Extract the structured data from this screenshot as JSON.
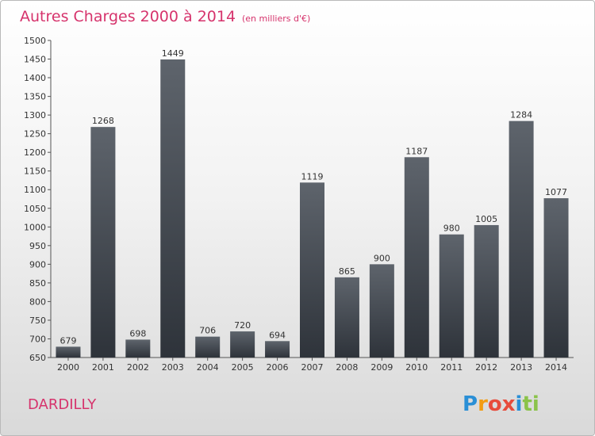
{
  "chart_data": {
    "type": "bar",
    "title": "Autres Charges 2000 à 2014",
    "subtitle": "(en milliers d'€)",
    "categories": [
      "2000",
      "2001",
      "2002",
      "2003",
      "2004",
      "2005",
      "2006",
      "2007",
      "2008",
      "2009",
      "2010",
      "2011",
      "2012",
      "2013",
      "2014"
    ],
    "values": [
      679,
      1268,
      698,
      1449,
      706,
      720,
      694,
      1119,
      865,
      900,
      1187,
      980,
      1005,
      1284,
      1077
    ],
    "ylim": [
      650,
      1500
    ],
    "yticks": [
      650,
      700,
      750,
      800,
      850,
      900,
      950,
      1000,
      1050,
      1100,
      1150,
      1200,
      1250,
      1300,
      1350,
      1400,
      1450,
      1500
    ],
    "grid": false,
    "xlabel": "",
    "ylabel": "",
    "bar_color": "#3f454d",
    "title_color": "#d6336c"
  },
  "location": "DARDILLY",
  "brand": {
    "name": "Proxiti",
    "letters": [
      {
        "ch": "P",
        "color": "#2a8fd6"
      },
      {
        "ch": "r",
        "color": "#f39c12"
      },
      {
        "ch": "o",
        "color": "#e74c3c"
      },
      {
        "ch": "x",
        "color": "#e74c3c"
      },
      {
        "ch": "i",
        "color": "#2a8fd6"
      },
      {
        "ch": "t",
        "color": "#8bc34a"
      },
      {
        "ch": "i",
        "color": "#8bc34a"
      }
    ]
  }
}
